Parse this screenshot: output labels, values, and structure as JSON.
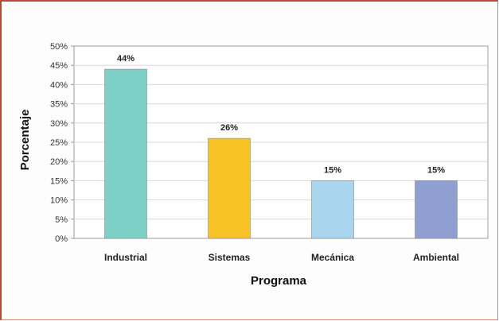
{
  "chart_data": {
    "type": "bar",
    "categories": [
      "Industrial",
      "Sistemas",
      "Mecánica",
      "Ambiental"
    ],
    "values": [
      44,
      26,
      15,
      15
    ],
    "data_labels": [
      "44%",
      "26%",
      "15%",
      "15%"
    ],
    "colors": [
      "#7ecfc6",
      "#f7c325",
      "#a9d6ee",
      "#8e9fd0"
    ],
    "xlabel": "Programa",
    "ylabel": "Porcentaje",
    "ylim": [
      0,
      50
    ],
    "y_ticks": [
      "0%",
      "5%",
      "10%",
      "15%",
      "20%",
      "25%",
      "30%",
      "35%",
      "40%",
      "45%",
      "50%"
    ],
    "grid": true,
    "legend": "none"
  }
}
